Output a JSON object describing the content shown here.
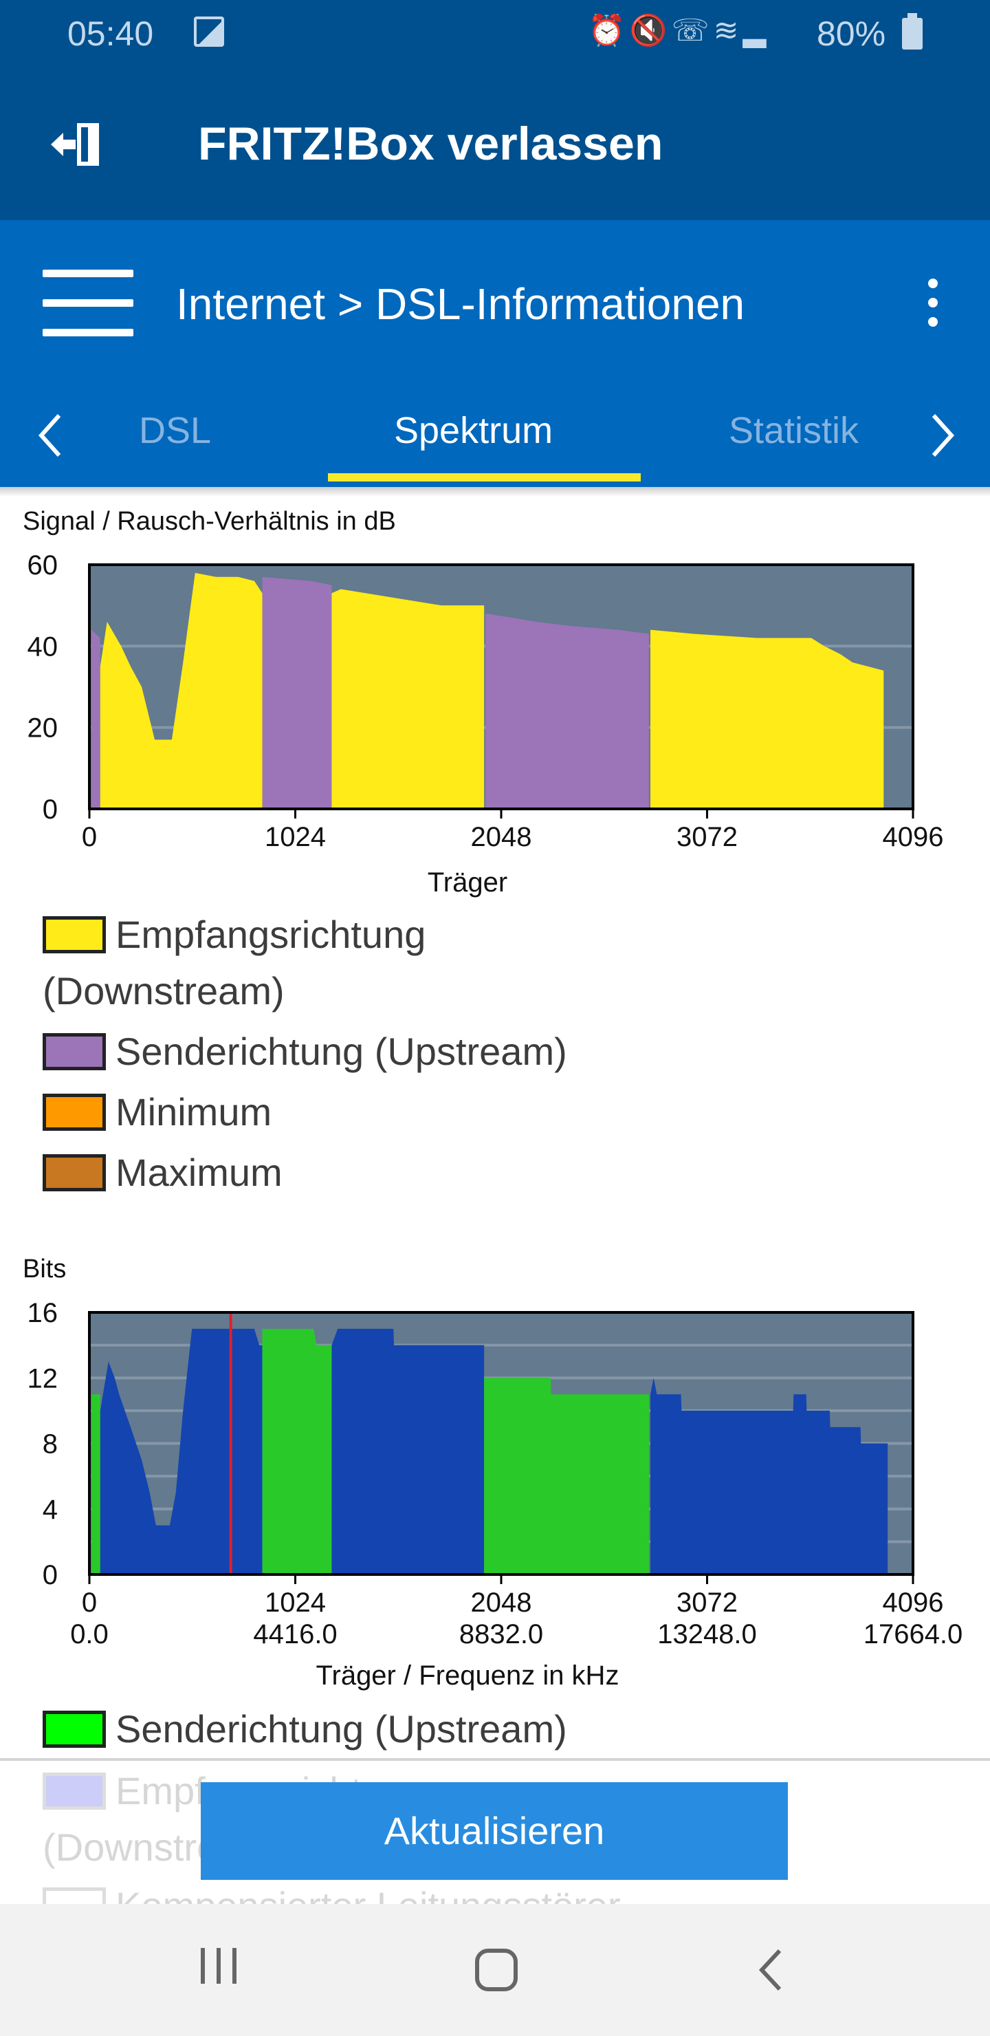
{
  "status": {
    "time": "05:40",
    "battery": "80%",
    "icons": [
      "alarm-icon",
      "mute-icon",
      "wifi-call-icon",
      "wifi-icon",
      "signal-icon"
    ]
  },
  "header": {
    "title": "FRITZ!Box verlassen"
  },
  "nav": {
    "breadcrumb": "Internet > DSL-Informationen",
    "tabs": [
      "DSL",
      "Spektrum",
      "Statistik"
    ],
    "active_tab": "Spektrum"
  },
  "legend1": [
    "Empfangsrichtung",
    "(Downstream)",
    "Senderichtung (Upstream)",
    "Minimum",
    "Maximum"
  ],
  "legend2": [
    "Senderichtung (Upstream)",
    "Empfangsrichtung",
    "(Downstream)",
    "Kompensierter Leitungsstörer"
  ],
  "colors": {
    "downstream": "#ffeb17",
    "upstream": "#9c74b8",
    "minimum": "#ff9900",
    "maximum": "#c87820",
    "bits_down": "#1444b0",
    "bits_up": "#2ac92a",
    "plot_bg": "#637a8f",
    "marker": "#e0202a"
  },
  "button": {
    "refresh": "Aktualisieren"
  },
  "chart_data": [
    {
      "type": "area",
      "title": "Signal / Rausch-Verhältnis in dB",
      "xlabel": "Träger",
      "xlim": [
        0,
        4096
      ],
      "ylim": [
        0,
        60
      ],
      "xticks": [
        "0",
        "1024",
        "2048",
        "3072",
        "4096"
      ],
      "yticks": [
        "0",
        "20",
        "40",
        "60"
      ],
      "series": [
        {
          "name": "Senderichtung (Upstream)",
          "color": "upstream",
          "points": [
            [
              10,
              44
            ],
            [
              54,
              42
            ]
          ]
        },
        {
          "name": "Empfangsrichtung (Downstream)",
          "color": "downstream",
          "points": [
            [
              54,
              35
            ],
            [
              88,
              46
            ],
            [
              158,
              40
            ],
            [
              205,
              35
            ],
            [
              260,
              30
            ],
            [
              325,
              17
            ],
            [
              410,
              17
            ],
            [
              466,
              36
            ],
            [
              504,
              50
            ],
            [
              526,
              58
            ],
            [
              630,
              57
            ],
            [
              740,
              57
            ],
            [
              820,
              56
            ],
            [
              860,
              53
            ]
          ]
        },
        {
          "name": "Senderichtung (Upstream)",
          "color": "upstream",
          "points": [
            [
              860,
              57
            ],
            [
              1100,
              56
            ],
            [
              1205,
              55
            ]
          ]
        },
        {
          "name": "Empfangsrichtung (Downstream)",
          "color": "downstream",
          "points": [
            [
              1205,
              53
            ],
            [
              1250,
              54
            ],
            [
              1375,
              53
            ],
            [
              1500,
              52
            ],
            [
              1625,
              51
            ],
            [
              1750,
              50
            ],
            [
              1963,
              50
            ]
          ]
        },
        {
          "name": "Senderichtung (Upstream)",
          "color": "upstream",
          "points": [
            [
              1970,
              48
            ],
            [
              2100,
              47
            ],
            [
              2220,
              46
            ],
            [
              2380,
              45
            ],
            [
              2630,
              44
            ],
            [
              2783,
              43
            ]
          ]
        },
        {
          "name": "Empfangsrichtung (Downstream)",
          "color": "downstream",
          "points": [
            [
              2790,
              44
            ],
            [
              3010,
              43
            ],
            [
              3320,
              42
            ],
            [
              3590,
              42
            ],
            [
              3655,
              40
            ],
            [
              3735,
              38
            ],
            [
              3795,
              36
            ],
            [
              3950,
              34
            ]
          ]
        }
      ]
    },
    {
      "type": "area",
      "title": "Bits",
      "xlabel": "Träger / Frequenz in kHz",
      "xlim": [
        0,
        4096
      ],
      "ylim": [
        0,
        16
      ],
      "xticks": [
        "0",
        "1024",
        "2048",
        "3072",
        "4096"
      ],
      "xticks2": [
        "0.0",
        "4416.0",
        "8832.0",
        "13248.0",
        "17664.0"
      ],
      "yticks": [
        "0",
        "4",
        "8",
        "12",
        "16"
      ],
      "marker_carrier": 703,
      "series": [
        {
          "name": "Senderichtung (Upstream)",
          "color": "bits_up",
          "points": [
            [
              10,
              11
            ],
            [
              54,
              11
            ]
          ]
        },
        {
          "name": "Empfangsrichtung (Downstream)",
          "color": "bits_down",
          "points": [
            [
              54,
              10
            ],
            [
              95,
              13
            ],
            [
              126,
              12
            ],
            [
              148,
              11
            ],
            [
              205,
              9
            ],
            [
              260,
              7
            ],
            [
              300,
              5
            ],
            [
              331,
              3
            ],
            [
              400,
              3
            ],
            [
              430,
              5
            ],
            [
              466,
              10
            ],
            [
              510,
              15
            ],
            [
              820,
              15
            ],
            [
              845,
              14
            ],
            [
              860,
              14
            ]
          ]
        },
        {
          "name": "Senderichtung (Upstream)",
          "color": "bits_up",
          "points": [
            [
              860,
              15
            ],
            [
              1115,
              15
            ],
            [
              1130,
              14
            ],
            [
              1205,
              14
            ]
          ]
        },
        {
          "name": "Empfangsrichtung (Downstream)",
          "color": "bits_down",
          "points": [
            [
              1205,
              14
            ],
            [
              1235,
              15
            ],
            [
              1512,
              15
            ],
            [
              1515,
              14
            ],
            [
              1963,
              14
            ]
          ]
        },
        {
          "name": "Senderichtung (Upstream)",
          "color": "bits_up",
          "points": [
            [
              1963,
              12
            ],
            [
              2294,
              12
            ],
            [
              2296,
              11
            ],
            [
              2783,
              11
            ]
          ]
        },
        {
          "name": "Empfangsrichtung (Downstream)",
          "color": "bits_down",
          "points": [
            [
              2790,
              11
            ],
            [
              2806,
              12
            ],
            [
              2822,
              11
            ],
            [
              2942,
              11
            ],
            [
              2945,
              10
            ],
            [
              3500,
              10
            ],
            [
              3502,
              11
            ],
            [
              3565,
              11
            ],
            [
              3567,
              10
            ],
            [
              3682,
              10
            ],
            [
              3684,
              9
            ],
            [
              3835,
              9
            ],
            [
              3837,
              8
            ],
            [
              3970,
              8
            ]
          ]
        }
      ]
    }
  ]
}
